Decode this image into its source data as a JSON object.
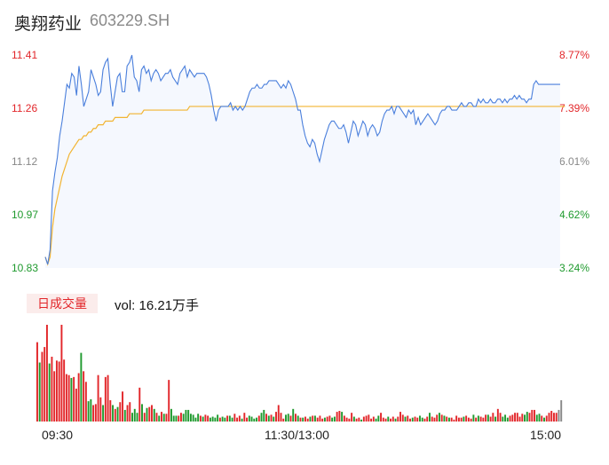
{
  "header": {
    "name": "奥翔药业",
    "code": "603229.SH"
  },
  "colors": {
    "up": "#e2262a",
    "down": "#1f9a2e",
    "price_line": "#4a7fdc",
    "avg_line": "#f2b431",
    "neutral": "#888888"
  },
  "chart_data": [
    {
      "type": "line",
      "title": "",
      "y_left_ticks": [
        "11.41",
        "11.26",
        "11.12",
        "10.97",
        "10.83"
      ],
      "y_right_ticks": [
        "8.77%",
        "7.39%",
        "6.01%",
        "4.62%",
        "3.24%"
      ],
      "ylim": [
        10.83,
        11.41
      ],
      "x_ticks": [
        "09:30",
        "11:30/13:00",
        "15:00"
      ],
      "series": [
        {
          "key": "price",
          "values": [
            10.86,
            10.84,
            10.88,
            11.04,
            11.09,
            11.13,
            11.19,
            11.23,
            11.28,
            11.33,
            11.32,
            11.36,
            11.35,
            11.3,
            11.38,
            11.33,
            11.27,
            11.29,
            11.31,
            11.37,
            11.35,
            11.33,
            11.3,
            11.31,
            11.37,
            11.39,
            11.4,
            11.33,
            11.27,
            11.31,
            11.35,
            11.36,
            11.31,
            11.31,
            11.38,
            11.39,
            11.41,
            11.35,
            11.34,
            11.31,
            11.37,
            11.38,
            11.36,
            11.37,
            11.34,
            11.36,
            11.37,
            11.36,
            11.34,
            11.35,
            11.36,
            11.36,
            11.37,
            11.35,
            11.34,
            11.33,
            11.36,
            11.37,
            11.38,
            11.35,
            11.37,
            11.36,
            11.35,
            11.36,
            11.36,
            11.36,
            11.36,
            11.35,
            11.33,
            11.3,
            11.26,
            11.23,
            11.26,
            11.27,
            11.27,
            11.27,
            11.27,
            11.28,
            11.26,
            11.27,
            11.26,
            11.27,
            11.26,
            11.27,
            11.29,
            11.31,
            11.32,
            11.32,
            11.33,
            11.32,
            11.32,
            11.33,
            11.33,
            11.34,
            11.34,
            11.34,
            11.34,
            11.33,
            11.32,
            11.33,
            11.32,
            11.34,
            11.33,
            11.31,
            11.29,
            11.26,
            11.26,
            11.22,
            11.19,
            11.17,
            11.16,
            11.18,
            11.17,
            11.14,
            11.12,
            11.15,
            11.18,
            11.2,
            11.22,
            11.23,
            11.23,
            11.22,
            11.21,
            11.21,
            11.22,
            11.2,
            11.17,
            11.2,
            11.23,
            11.22,
            11.19,
            11.21,
            11.23,
            11.22,
            11.19,
            11.21,
            11.22,
            11.21,
            11.19,
            11.2,
            11.23,
            11.25,
            11.26,
            11.26,
            11.27,
            11.25,
            11.27,
            11.27,
            11.26,
            11.25,
            11.24,
            11.26,
            11.25,
            11.26,
            11.22,
            11.24,
            11.22,
            11.23,
            11.24,
            11.25,
            11.24,
            11.23,
            11.22,
            11.23,
            11.25,
            11.26,
            11.26,
            11.27,
            11.27,
            11.26,
            11.26,
            11.26,
            11.27,
            11.28,
            11.27,
            11.27,
            11.28,
            11.28,
            11.27,
            11.27,
            11.29,
            11.28,
            11.29,
            11.28,
            11.28,
            11.29,
            11.28,
            11.28,
            11.29,
            11.29,
            11.28,
            11.29,
            11.28,
            11.29,
            11.29,
            11.3,
            11.29,
            11.3,
            11.29,
            11.29,
            11.28,
            11.29,
            11.29,
            11.33,
            11.34,
            11.33,
            11.33,
            11.33,
            11.33,
            11.33,
            11.33,
            11.33,
            11.33,
            11.33,
            11.33
          ]
        },
        {
          "key": "average",
          "values": [
            10.86,
            10.84,
            10.86,
            10.94,
            10.99,
            11.02,
            11.05,
            11.08,
            11.1,
            11.12,
            11.14,
            11.15,
            11.16,
            11.17,
            11.18,
            11.18,
            11.19,
            11.19,
            11.2,
            11.2,
            11.21,
            11.21,
            11.22,
            11.22,
            11.22,
            11.23,
            11.23,
            11.23,
            11.23,
            11.24,
            11.24,
            11.24,
            11.24,
            11.24,
            11.24,
            11.25,
            11.25,
            11.25,
            11.25,
            11.25,
            11.25,
            11.26,
            11.26,
            11.26,
            11.26,
            11.26,
            11.26,
            11.26,
            11.26,
            11.26,
            11.26,
            11.26,
            11.26,
            11.26,
            11.26,
            11.26,
            11.26,
            11.26,
            11.26,
            11.26,
            11.27,
            11.27,
            11.27,
            11.27,
            11.27,
            11.27,
            11.27,
            11.27,
            11.27,
            11.27,
            11.27,
            11.27,
            11.27,
            11.27,
            11.27,
            11.27,
            11.27,
            11.27,
            11.27,
            11.27,
            11.27,
            11.27,
            11.27,
            11.27,
            11.27,
            11.27,
            11.27,
            11.27,
            11.27,
            11.27,
            11.27,
            11.27,
            11.27,
            11.27,
            11.27,
            11.27,
            11.27,
            11.27,
            11.27,
            11.27,
            11.27,
            11.27,
            11.27,
            11.27,
            11.27,
            11.27,
            11.27,
            11.27,
            11.27,
            11.27,
            11.27,
            11.27,
            11.27,
            11.27,
            11.27,
            11.27,
            11.27,
            11.27,
            11.27,
            11.27,
            11.27,
            11.27,
            11.27,
            11.27,
            11.27,
            11.27,
            11.27,
            11.27,
            11.27,
            11.27,
            11.27,
            11.27,
            11.27,
            11.27,
            11.27,
            11.27,
            11.27,
            11.27,
            11.27,
            11.27,
            11.27,
            11.27,
            11.27,
            11.27,
            11.27,
            11.27,
            11.27,
            11.27,
            11.27,
            11.27,
            11.27,
            11.27,
            11.27,
            11.27,
            11.27,
            11.27,
            11.27,
            11.27,
            11.27,
            11.27,
            11.27,
            11.27,
            11.27,
            11.27,
            11.27,
            11.27,
            11.27,
            11.27,
            11.27,
            11.27,
            11.27,
            11.27,
            11.27,
            11.27,
            11.27,
            11.27,
            11.27,
            11.27,
            11.27,
            11.27,
            11.27,
            11.27,
            11.27,
            11.27,
            11.27,
            11.27,
            11.27,
            11.27,
            11.27,
            11.27,
            11.27,
            11.27,
            11.27,
            11.27,
            11.27,
            11.27,
            11.27,
            11.27,
            11.27,
            11.27,
            11.27,
            11.27,
            11.27,
            11.27,
            11.27,
            11.27,
            11.27,
            11.27,
            11.27,
            11.27,
            11.27,
            11.27,
            11.27,
            11.27,
            11.27,
            11.27,
            11.27
          ]
        }
      ]
    },
    {
      "type": "bar",
      "title": "",
      "label": "日成交量",
      "summary": "vol: 16.21万手",
      "ylim": [
        0,
        1
      ],
      "values": [
        0.82,
        0.61,
        0.72,
        0.77,
        1.0,
        0.6,
        0.67,
        0.52,
        0.63,
        0.62,
        1.0,
        0.64,
        0.49,
        0.48,
        0.45,
        0.46,
        0.34,
        0.5,
        0.71,
        0.52,
        0.41,
        0.21,
        0.23,
        0.17,
        0.18,
        0.48,
        0.25,
        0.17,
        0.46,
        0.48,
        0.22,
        0.17,
        0.13,
        0.15,
        0.2,
        0.31,
        0.12,
        0.17,
        0.2,
        0.09,
        0.13,
        0.09,
        0.35,
        0.18,
        0.09,
        0.14,
        0.15,
        0.17,
        0.13,
        0.09,
        0.06,
        0.1,
        0.08,
        0.08,
        0.43,
        0.13,
        0.06,
        0.06,
        0.06,
        0.09,
        0.08,
        0.12,
        0.12,
        0.08,
        0.07,
        0.04,
        0.08,
        0.06,
        0.05,
        0.07,
        0.06,
        0.04,
        0.05,
        0.04,
        0.07,
        0.04,
        0.05,
        0.04,
        0.06,
        0.06,
        0.04,
        0.08,
        0.04,
        0.06,
        0.03,
        0.09,
        0.04,
        0.06,
        0.05,
        0.03,
        0.04,
        0.06,
        0.09,
        0.12,
        0.08,
        0.06,
        0.07,
        0.05,
        0.1,
        0.17,
        0.09,
        0.03,
        0.07,
        0.08,
        0.06,
        0.13,
        0.08,
        0.06,
        0.04,
        0.04,
        0.05,
        0.03,
        0.05,
        0.06,
        0.06,
        0.04,
        0.06,
        0.03,
        0.04,
        0.05,
        0.06,
        0.04,
        0.05,
        0.1,
        0.11,
        0.1,
        0.06,
        0.04,
        0.03,
        0.09,
        0.05,
        0.03,
        0.04,
        0.02,
        0.05,
        0.06,
        0.07,
        0.03,
        0.05,
        0.03,
        0.06,
        0.09,
        0.04,
        0.03,
        0.05,
        0.03,
        0.05,
        0.03,
        0.05,
        0.1,
        0.07,
        0.05,
        0.06,
        0.03,
        0.04,
        0.05,
        0.04,
        0.06,
        0.04,
        0.03,
        0.05,
        0.09,
        0.05,
        0.04,
        0.07,
        0.09,
        0.07,
        0.06,
        0.05,
        0.04,
        0.04,
        0.02,
        0.06,
        0.04,
        0.04,
        0.05,
        0.06,
        0.04,
        0.03,
        0.07,
        0.04,
        0.06,
        0.05,
        0.04,
        0.07,
        0.07,
        0.05,
        0.09,
        0.05,
        0.13,
        0.09,
        0.05,
        0.07,
        0.04,
        0.06,
        0.07,
        0.09,
        0.09,
        0.05,
        0.08,
        0.07,
        0.1,
        0.09,
        0.12,
        0.12,
        0.07,
        0.08,
        0.06,
        0.04,
        0.06,
        0.09,
        0.11,
        0.09,
        0.09,
        0.12,
        0.22
      ],
      "directions": [
        "up",
        "down",
        "up",
        "up",
        "up",
        "down",
        "up",
        "up",
        "up",
        "up",
        "up",
        "up",
        "up",
        "up",
        "down",
        "up",
        "up",
        "up",
        "down",
        "up",
        "up",
        "down",
        "down",
        "up",
        "up",
        "up",
        "up",
        "down",
        "up",
        "up",
        "up",
        "down",
        "up",
        "down",
        "up",
        "up",
        "down",
        "up",
        "up",
        "down",
        "down",
        "down",
        "up",
        "down",
        "up",
        "down",
        "up",
        "up",
        "down",
        "up",
        "down",
        "up",
        "down",
        "up",
        "up",
        "down",
        "down",
        "down",
        "up",
        "up",
        "down",
        "down",
        "down",
        "down",
        "down",
        "down",
        "down",
        "up",
        "down",
        "up",
        "up",
        "down",
        "down",
        "down",
        "down",
        "up",
        "down",
        "down",
        "up",
        "down",
        "down",
        "up",
        "up",
        "up",
        "down",
        "up",
        "up",
        "down",
        "down",
        "down",
        "down",
        "up",
        "down",
        "down",
        "up",
        "down",
        "up",
        "down",
        "up",
        "up",
        "up",
        "up",
        "down",
        "down",
        "up",
        "down",
        "up",
        "down",
        "up",
        "down",
        "up",
        "up",
        "down",
        "up",
        "down",
        "up",
        "up",
        "up",
        "down",
        "up",
        "up",
        "down",
        "down",
        "up",
        "up",
        "down",
        "up",
        "up",
        "up",
        "up",
        "down",
        "up",
        "up",
        "down",
        "up",
        "up",
        "up",
        "up",
        "up",
        "down",
        "down",
        "up",
        "up",
        "up",
        "down",
        "up",
        "up",
        "down",
        "up",
        "up",
        "up",
        "down",
        "up",
        "up",
        "down",
        "up",
        "up",
        "down",
        "down",
        "up",
        "up",
        "down",
        "up",
        "up",
        "up",
        "down",
        "up",
        "down",
        "up",
        "down",
        "up",
        "up",
        "up",
        "up",
        "up",
        "down",
        "up",
        "up",
        "up",
        "down",
        "up",
        "down",
        "up",
        "up",
        "up",
        "down",
        "up",
        "up",
        "down",
        "up",
        "up",
        "down",
        "down",
        "down",
        "up",
        "up",
        "up",
        "up",
        "up",
        "up",
        "down",
        "down",
        "up",
        "up",
        "up",
        "down",
        "down",
        "up",
        "down",
        "up",
        "up",
        "up",
        "up",
        "up",
        "neutral"
      ]
    }
  ]
}
